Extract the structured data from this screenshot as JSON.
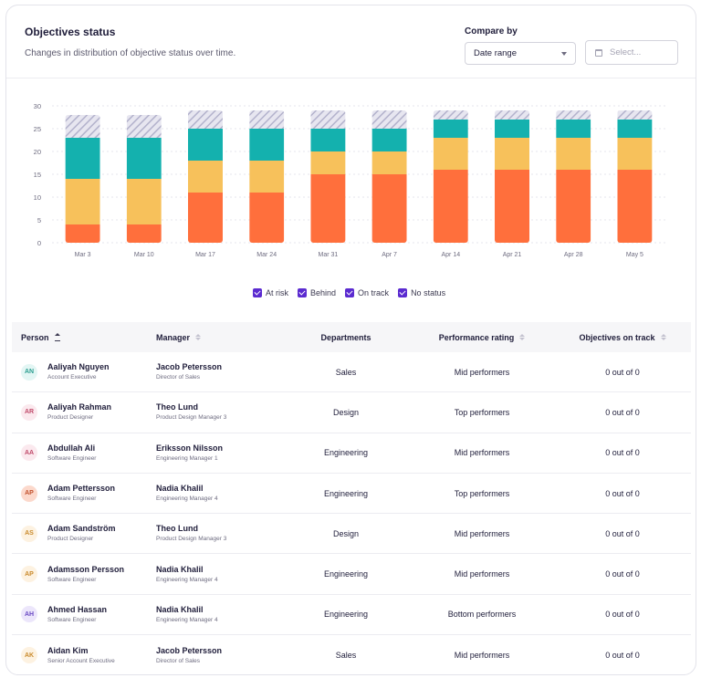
{
  "header": {
    "title": "Objectives status",
    "subtitle": "Changes in distribution of objective status over time.",
    "compare_label": "Compare by",
    "compare_value": "Date range",
    "date_placeholder": "Select..."
  },
  "colors": {
    "at_risk": "#ff6f3c",
    "behind": "#f7c15b",
    "on_track": "#14b1ae",
    "no_status_stripe": "#b3b2cc",
    "no_status_bg": "#e7e6f0",
    "checkbox": "#5b2bd0"
  },
  "chart_data": {
    "type": "bar",
    "stacked": true,
    "categories": [
      "Mar 3",
      "Mar 10",
      "Mar 17",
      "Mar 24",
      "Mar 31",
      "Apr 7",
      "Apr 14",
      "Apr 21",
      "Apr 28",
      "May 5"
    ],
    "series": [
      {
        "name": "At risk",
        "values": [
          4,
          4,
          11,
          11,
          15,
          15,
          16,
          16,
          16,
          16
        ]
      },
      {
        "name": "Behind",
        "values": [
          10,
          10,
          7,
          7,
          5,
          5,
          7,
          7,
          7,
          7
        ]
      },
      {
        "name": "On track",
        "values": [
          9,
          9,
          7,
          7,
          5,
          5,
          4,
          4,
          4,
          4
        ]
      },
      {
        "name": "No status",
        "values": [
          5,
          5,
          4,
          4,
          4,
          4,
          2,
          2,
          2,
          2
        ]
      }
    ],
    "yticks": [
      0,
      5,
      10,
      15,
      20,
      25,
      30
    ],
    "ylim": [
      0,
      30
    ],
    "grid": "dashed horizontal",
    "legend_position": "bottom-center"
  },
  "legend": [
    "At risk",
    "Behind",
    "On track",
    "No status"
  ],
  "table": {
    "columns": [
      "Person",
      "Manager",
      "Departments",
      "Performance rating",
      "Objectives on track"
    ],
    "rows": [
      {
        "initials": "AN",
        "name": "Aaliyah Nguyen",
        "role": "Account Executive",
        "manager": "Jacob Petersson",
        "manager_role": "Director of Sales",
        "department": "Sales",
        "rating": "Mid performers",
        "objectives": "0 out of 0",
        "avatar_bg": "#e3f6f4",
        "avatar_fg": "#2a9d8f"
      },
      {
        "initials": "AR",
        "name": "Aaliyah Rahman",
        "role": "Product Designer",
        "manager": "Theo Lund",
        "manager_role": "Product Design Manager 3",
        "department": "Design",
        "rating": "Top performers",
        "objectives": "0 out of 0",
        "avatar_bg": "#fbe9ee",
        "avatar_fg": "#c04a6a"
      },
      {
        "initials": "AA",
        "name": "Abdullah Ali",
        "role": "Software Engineer",
        "manager": "Eriksson Nilsson",
        "manager_role": "Engineering Manager 1",
        "department": "Engineering",
        "rating": "Mid performers",
        "objectives": "0 out of 0",
        "avatar_bg": "#fbe9ee",
        "avatar_fg": "#c04a6a"
      },
      {
        "initials": "AP",
        "name": "Adam Pettersson",
        "role": "Software Engineer",
        "manager": "Nadia Khalil",
        "manager_role": "Engineering Manager 4",
        "department": "Engineering",
        "rating": "Top performers",
        "objectives": "0 out of 0",
        "avatar_bg": "#fcd9cc",
        "avatar_fg": "#c2502c"
      },
      {
        "initials": "AS",
        "name": "Adam Sandström",
        "role": "Product Designer",
        "manager": "Theo Lund",
        "manager_role": "Product Design Manager 3",
        "department": "Design",
        "rating": "Mid performers",
        "objectives": "0 out of 0",
        "avatar_bg": "#fdf2e1",
        "avatar_fg": "#c98a2b"
      },
      {
        "initials": "AP",
        "name": "Adamsson Persson",
        "role": "Software Engineer",
        "manager": "Nadia Khalil",
        "manager_role": "Engineering Manager 4",
        "department": "Engineering",
        "rating": "Mid performers",
        "objectives": "0 out of 0",
        "avatar_bg": "#fdf2e1",
        "avatar_fg": "#c98a2b"
      },
      {
        "initials": "AH",
        "name": "Ahmed Hassan",
        "role": "Software Engineer",
        "manager": "Nadia Khalil",
        "manager_role": "Engineering Manager 4",
        "department": "Engineering",
        "rating": "Bottom performers",
        "objectives": "0 out of 0",
        "avatar_bg": "#ece6fb",
        "avatar_fg": "#6b4bc4"
      },
      {
        "initials": "AK",
        "name": "Aidan Kim",
        "role": "Senior Account Executive",
        "manager": "Jacob Petersson",
        "manager_role": "Director of Sales",
        "department": "Sales",
        "rating": "Mid performers",
        "objectives": "0 out of 0",
        "avatar_bg": "#fdf2e1",
        "avatar_fg": "#c98a2b"
      }
    ]
  }
}
